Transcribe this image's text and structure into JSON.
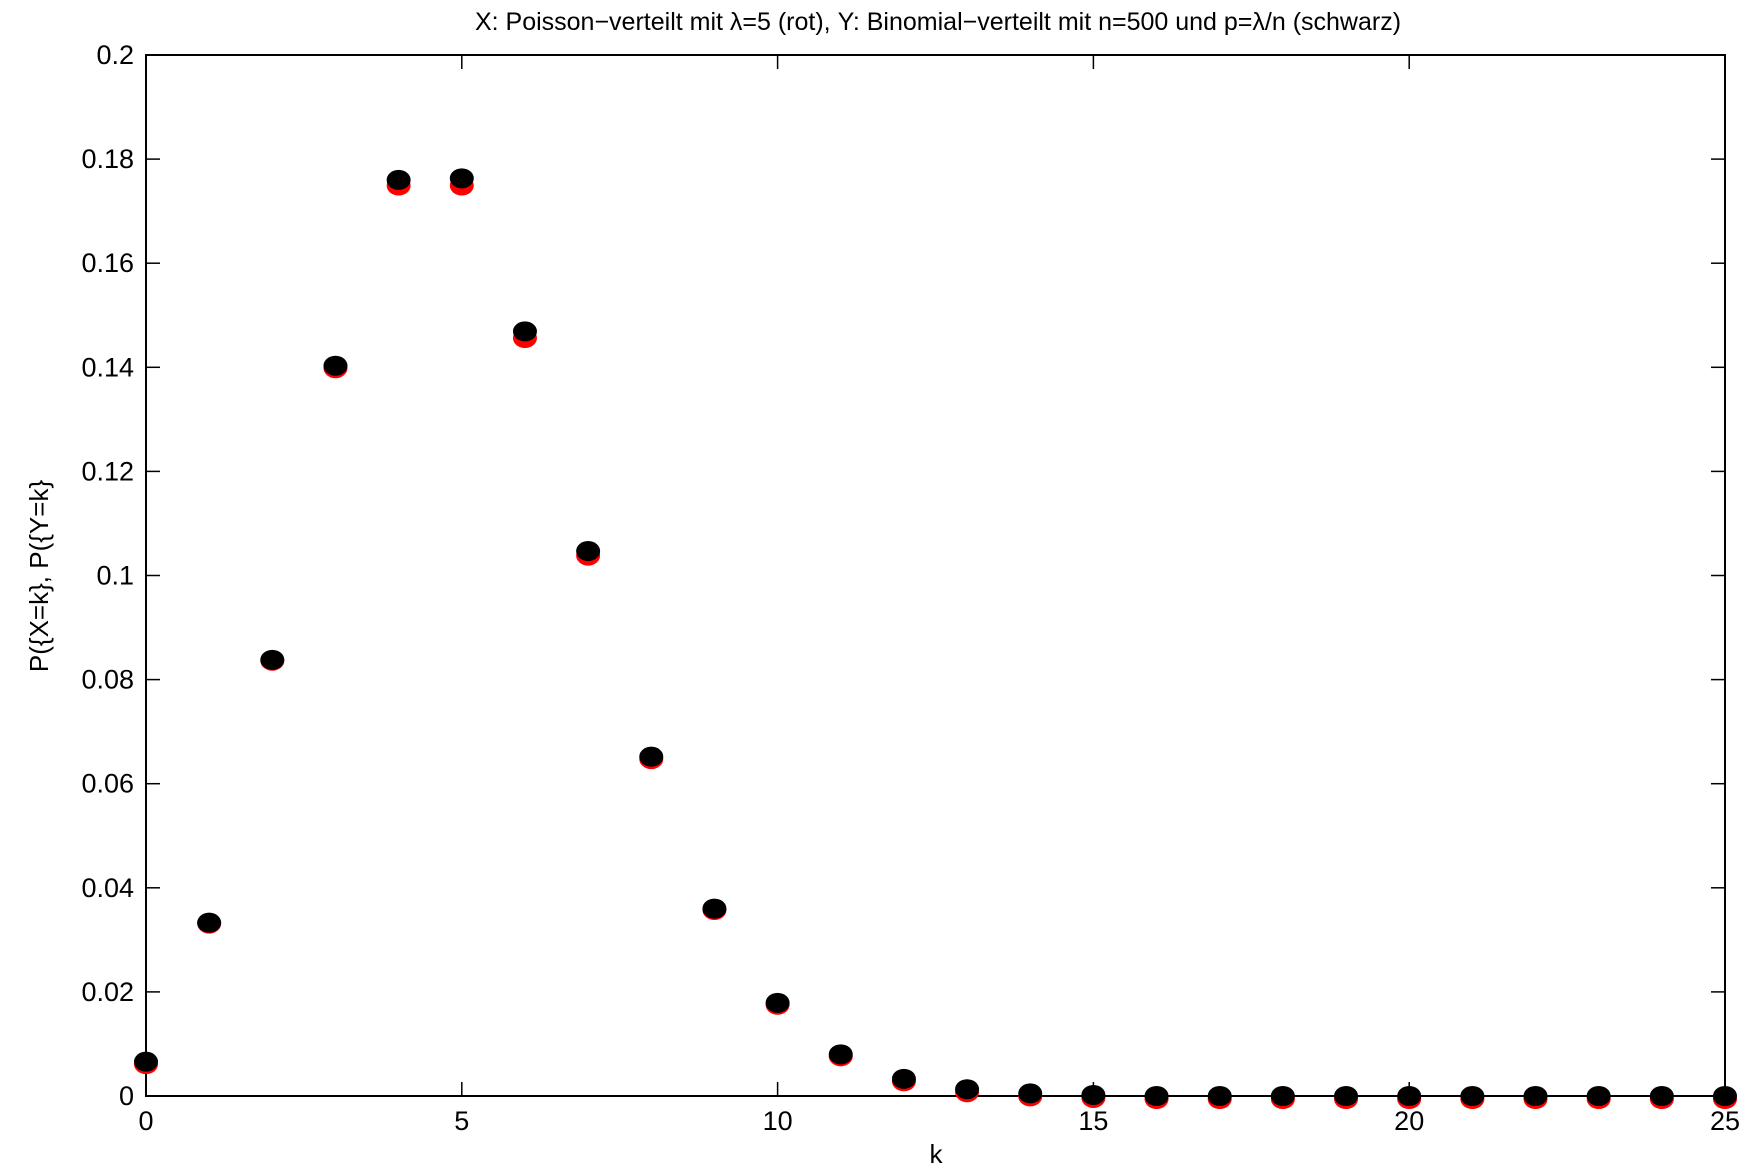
{
  "chart_data": {
    "type": "scatter",
    "title": "X: Poisson−verteilt mit λ=5 (rot), Y: Binomial−verteilt mit  n=500 und p=λ/n (schwarz)",
    "xlabel": "k",
    "ylabel": "P({X=k}, P({Y=k}",
    "xlim": [
      0,
      25
    ],
    "ylim": [
      0,
      0.2
    ],
    "xticks": [
      0,
      5,
      10,
      15,
      20,
      25
    ],
    "xtick_labels": [
      "0",
      "5",
      "10",
      "15",
      "20",
      "25"
    ],
    "yticks": [
      0,
      0.02,
      0.04,
      0.06,
      0.08,
      0.1,
      0.12,
      0.14,
      0.16,
      0.18,
      0.2
    ],
    "ytick_labels": [
      "0",
      "0.02",
      "0.04",
      "0.06",
      "0.08",
      "0.1",
      "0.12",
      "0.14",
      "0.16",
      "0.18",
      "0.2"
    ],
    "grid": false,
    "x": [
      0,
      1,
      2,
      3,
      4,
      5,
      6,
      7,
      8,
      9,
      10,
      11,
      12,
      13,
      14,
      15,
      16,
      17,
      18,
      19,
      20,
      21,
      22,
      23,
      24,
      25
    ],
    "series": [
      {
        "color": "#ff0000",
        "values": [
          0.0067,
          0.0337,
          0.0842,
          0.1404,
          0.1755,
          0.1755,
          0.1462,
          0.1044,
          0.0653,
          0.0363,
          0.0181,
          0.0082,
          0.0034,
          0.0013,
          0.0005,
          0.0002,
          0.0,
          0.0,
          0.0,
          0.0,
          0.0,
          0.0,
          0.0,
          0.0,
          0.0,
          0.0
        ]
      },
      {
        "color": "#000000",
        "values": [
          0.0066,
          0.0333,
          0.0838,
          0.1403,
          0.176,
          0.1763,
          0.1469,
          0.1047,
          0.0652,
          0.036,
          0.0179,
          0.008,
          0.0033,
          0.0013,
          0.0005,
          0.0002,
          0.0,
          0.0,
          0.0,
          0.0,
          0.0,
          0.0,
          0.0,
          0.0,
          0.0,
          0.0
        ]
      }
    ]
  }
}
